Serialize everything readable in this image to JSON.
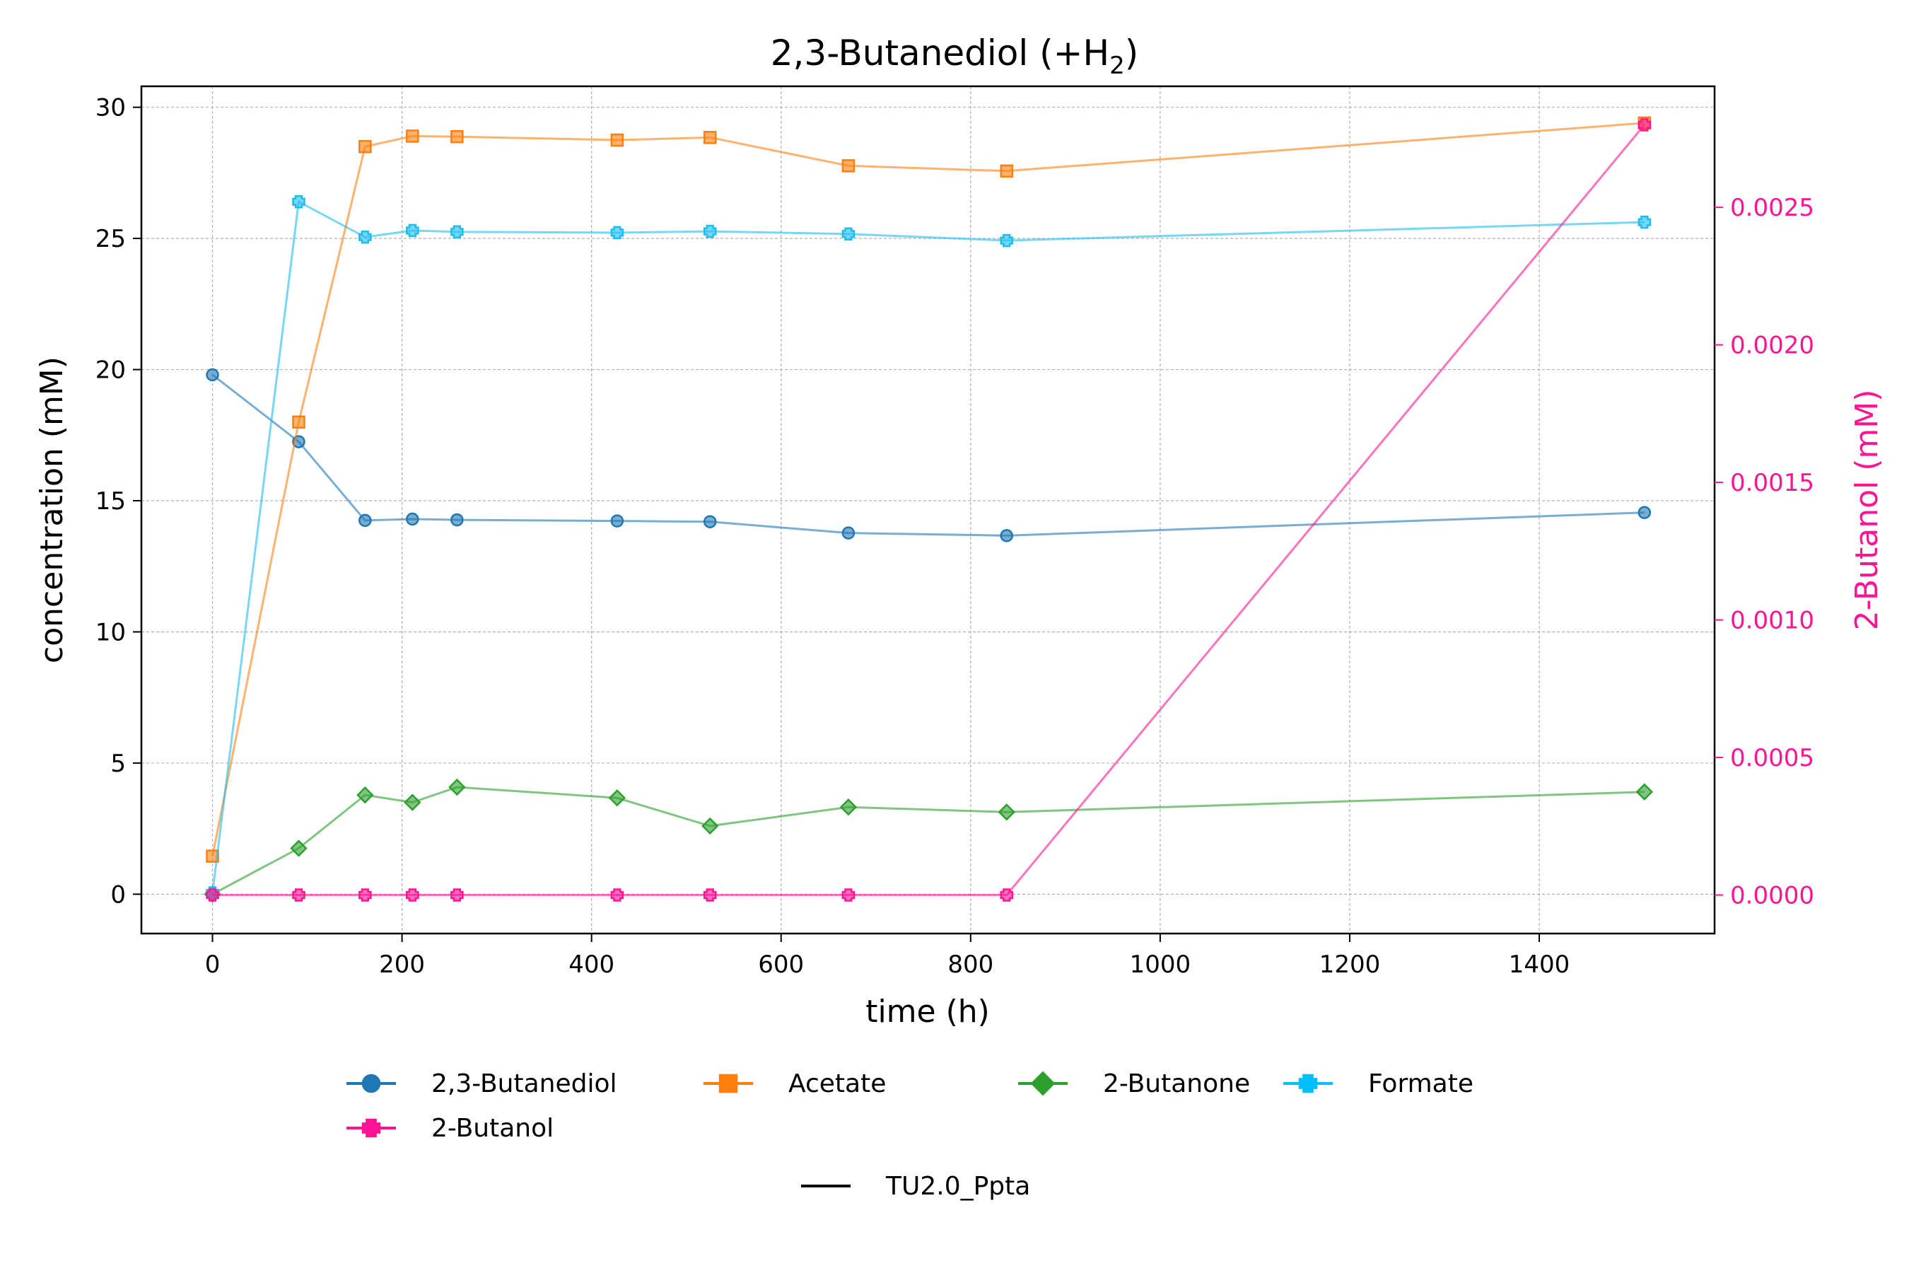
{
  "chart_data": {
    "type": "line",
    "title_main": "2,3-Butanediol (+H",
    "title_sub": "2",
    "title_close": ")",
    "xlabel": "time (h)",
    "ylabel": "concentration (mM)",
    "y2label": "2-Butanol (mM)",
    "xlim": [
      -75,
      1585
    ],
    "ylim": [
      -1.5,
      30.8
    ],
    "y2lim": [
      -0.00014,
      0.00294
    ],
    "xticks": [
      0,
      200,
      400,
      600,
      800,
      1000,
      1200,
      1400
    ],
    "yticks": [
      0,
      5,
      10,
      15,
      20,
      25,
      30
    ],
    "y2ticks": [
      0.0,
      0.0005,
      0.001,
      0.0015,
      0.002,
      0.0025
    ],
    "y2tick_decimals": 4,
    "grid": true,
    "legend_position": "bottom-center",
    "x": [
      0,
      91,
      161,
      211,
      258,
      427,
      525,
      671,
      838,
      1511
    ],
    "series": [
      {
        "name": "2,3-Butanediol",
        "color": "#1f77b4",
        "marker": "circle",
        "axis": "left",
        "values": [
          19.8,
          17.25,
          14.25,
          14.3,
          14.27,
          14.23,
          14.2,
          13.77,
          13.67,
          14.55
        ]
      },
      {
        "name": "Acetate",
        "color": "#ff7f0e",
        "marker": "square",
        "axis": "left",
        "values": [
          1.45,
          18.0,
          28.5,
          28.9,
          28.88,
          28.75,
          28.85,
          27.77,
          27.57,
          29.4
        ]
      },
      {
        "name": "2-Butanone",
        "color": "#2ca02c",
        "marker": "diamond",
        "axis": "left",
        "values": [
          0.0,
          1.75,
          3.78,
          3.5,
          4.08,
          3.67,
          2.6,
          3.32,
          3.13,
          3.9
        ]
      },
      {
        "name": "Formate",
        "color": "#1ebcf0",
        "marker": "plus",
        "axis": "left",
        "values": [
          0.05,
          26.4,
          25.05,
          25.3,
          25.25,
          25.22,
          25.27,
          25.17,
          24.92,
          25.62
        ]
      },
      {
        "name": "2-Butanol",
        "color": "#ff1493",
        "marker": "plus",
        "axis": "right",
        "values": [
          0,
          0,
          0,
          0,
          0,
          0,
          0,
          0,
          0,
          0.0028
        ]
      }
    ],
    "strain_legend": {
      "label": "TU2.0_Ppta",
      "color": "#000000"
    }
  }
}
